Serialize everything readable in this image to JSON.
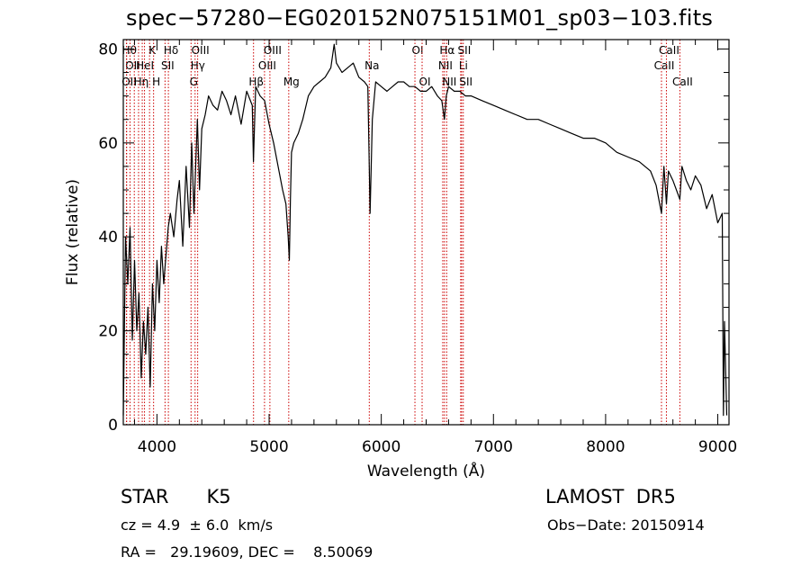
{
  "title": "spec−57280−EG020152N075151M01_sp03−103.fits",
  "footer": {
    "object_type": "STAR",
    "subclass": "K5",
    "survey": "LAMOST  DR5",
    "cz": "cz = 4.9  ± 6.0  km/s",
    "obs_date": "Obs−Date: 20150914",
    "radec": "RA =   29.19609, DEC =    8.50069"
  },
  "chart_data": {
    "type": "line",
    "title": "spec−57280−EG020152N075151M01_sp03−103.fits",
    "xlabel": "Wavelength (Å)",
    "ylabel": "Flux (relative)",
    "xlim": [
      3700,
      9100
    ],
    "ylim": [
      0,
      82
    ],
    "x_ticks": [
      4000,
      5000,
      6000,
      7000,
      8000,
      9000
    ],
    "y_ticks": [
      0,
      20,
      40,
      60,
      80
    ],
    "grid": false,
    "line_color": "#000000",
    "marker_color": "#cc0000",
    "series": [
      {
        "x": [
          3700,
          3720,
          3740,
          3760,
          3780,
          3800,
          3820,
          3840,
          3860,
          3880,
          3900,
          3920,
          3940,
          3960,
          3980,
          4000,
          4020,
          4040,
          4060,
          4080,
          4100,
          4120,
          4150,
          4180,
          4200,
          4230,
          4260,
          4290,
          4310,
          4330,
          4360,
          4380,
          4400,
          4430,
          4460,
          4500,
          4540,
          4580,
          4620,
          4660,
          4700,
          4750,
          4800,
          4850,
          4860,
          4880,
          4920,
          4960,
          5000,
          5040,
          5080,
          5120,
          5150,
          5170,
          5180,
          5190,
          5200,
          5220,
          5260,
          5300,
          5350,
          5400,
          5450,
          5500,
          5550,
          5580,
          5600,
          5650,
          5700,
          5750,
          5800,
          5850,
          5880,
          5893,
          5900,
          5920,
          5950,
          6000,
          6050,
          6100,
          6150,
          6200,
          6250,
          6300,
          6350,
          6400,
          6450,
          6500,
          6540,
          6563,
          6580,
          6600,
          6650,
          6700,
          6750,
          6800,
          6900,
          7000,
          7100,
          7200,
          7300,
          7400,
          7500,
          7600,
          7700,
          7800,
          7900,
          8000,
          8100,
          8200,
          8300,
          8400,
          8450,
          8498,
          8520,
          8542,
          8560,
          8600,
          8662,
          8680,
          8720,
          8760,
          8800,
          8850,
          8900,
          8950,
          9000,
          9040,
          9050,
          9060,
          9080
        ],
        "y": [
          2,
          40,
          30,
          42,
          18,
          35,
          20,
          28,
          10,
          22,
          15,
          25,
          8,
          30,
          20,
          35,
          26,
          38,
          30,
          36,
          42,
          45,
          40,
          48,
          52,
          38,
          55,
          42,
          60,
          45,
          65,
          50,
          63,
          66,
          70,
          68,
          67,
          71,
          69,
          66,
          70,
          64,
          71,
          68,
          56,
          72,
          70,
          69,
          64,
          60,
          55,
          50,
          47,
          40,
          35,
          48,
          58,
          60,
          62,
          65,
          70,
          72,
          73,
          74,
          76,
          81,
          77,
          75,
          76,
          77,
          74,
          73,
          72,
          55,
          45,
          65,
          73,
          72,
          71,
          72,
          73,
          73,
          72,
          72,
          71,
          71,
          72,
          70,
          69,
          65,
          70,
          72,
          71,
          71,
          70,
          70,
          69,
          68,
          67,
          66,
          65,
          65,
          64,
          63,
          62,
          61,
          61,
          60,
          58,
          57,
          56,
          54,
          51,
          45,
          55,
          47,
          54,
          52,
          48,
          55,
          52,
          50,
          53,
          51,
          46,
          49,
          43,
          45,
          2,
          22,
          2
        ]
      }
    ],
    "lines": [
      {
        "x": 3730,
        "row": 1,
        "label": "Hθ"
      },
      {
        "x": 3760,
        "row": 2,
        "label": "OII"
      },
      {
        "x": 3728,
        "row": 3,
        "label": "OII"
      },
      {
        "x": 3798,
        "row": 1,
        "label": ""
      },
      {
        "x": 3836,
        "row": 3,
        "label": "Hη"
      },
      {
        "x": 3869,
        "row": 2,
        "label": "HeI"
      },
      {
        "x": 3889,
        "row": 1,
        "label": ""
      },
      {
        "x": 3934,
        "row": 1,
        "label": "K"
      },
      {
        "x": 3970,
        "row": 3,
        "label": "H"
      },
      {
        "x": 4072,
        "row": 2,
        "label": "SII"
      },
      {
        "x": 4102,
        "row": 1,
        "label": "Hδ"
      },
      {
        "x": 4304,
        "row": 3,
        "label": "G"
      },
      {
        "x": 4340,
        "row": 2,
        "label": "Hγ"
      },
      {
        "x": 4363,
        "row": 1,
        "label": "OIII"
      },
      {
        "x": 4861,
        "row": 3,
        "label": "Hβ"
      },
      {
        "x": 4959,
        "row": 2,
        "label": "OIII"
      },
      {
        "x": 5007,
        "row": 1,
        "label": "OIII"
      },
      {
        "x": 5175,
        "row": 3,
        "label": "Mg"
      },
      {
        "x": 5893,
        "row": 2,
        "label": "Na"
      },
      {
        "x": 6300,
        "row": 1,
        "label": "OI"
      },
      {
        "x": 6364,
        "row": 3,
        "label": "OI"
      },
      {
        "x": 6548,
        "row": 2,
        "label": "NII"
      },
      {
        "x": 6563,
        "row": 1,
        "label": "Hα"
      },
      {
        "x": 6583,
        "row": 3,
        "label": "NII"
      },
      {
        "x": 6708,
        "row": 2,
        "label": "Li"
      },
      {
        "x": 6716,
        "row": 1,
        "label": "SII"
      },
      {
        "x": 6731,
        "row": 3,
        "label": "SII"
      },
      {
        "x": 8498,
        "row": 2,
        "label": "CaII"
      },
      {
        "x": 8542,
        "row": 1,
        "label": "CaII"
      },
      {
        "x": 8662,
        "row": 3,
        "label": "CaII"
      }
    ]
  }
}
